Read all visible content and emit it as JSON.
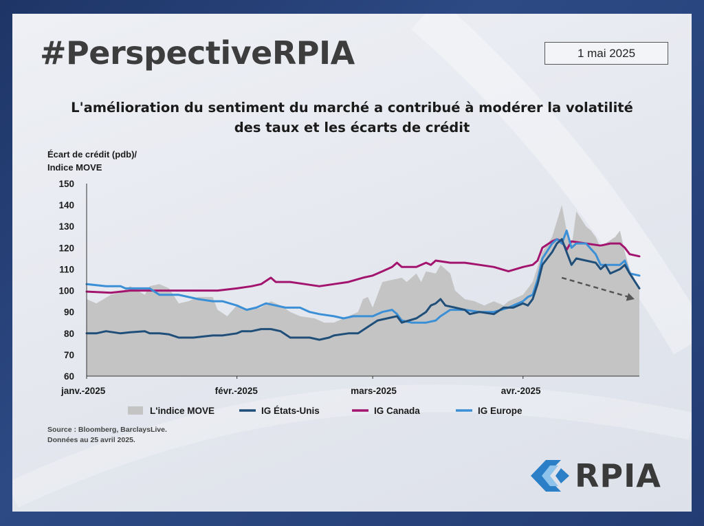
{
  "header": {
    "hashtag": "#PerspectiveRPIA",
    "date": "1 mai 2025"
  },
  "title_line1": "L'amélioration du sentiment du marché a contribué à modérer la volatilité",
  "title_line2": "des taux et les écarts de crédit",
  "ylabel_line1": "Écart de crédit (pdb)/",
  "ylabel_line2": "Indice MOVE",
  "source_line1": "Source : Bloomberg, BarclaysLive.",
  "source_line2": "Données au 25 avril 2025.",
  "logo": {
    "text": "RPIA",
    "icon": "rpia-chevron-logo"
  },
  "colors": {
    "move": "#c4c4c4",
    "us": "#1f4e79",
    "canada": "#a3146e",
    "europe": "#3a8fd6",
    "arrow": "#555555"
  },
  "chart_data": {
    "type": "line",
    "title": "L'amélioration du sentiment du marché a contribué à modérer la volatilité des taux et les écarts de crédit",
    "ylabel": "Écart de crédit (pdb)/ Indice MOVE",
    "ylim": [
      60,
      150
    ],
    "yticks": [
      60,
      70,
      80,
      90,
      100,
      110,
      120,
      130,
      140,
      150
    ],
    "x_start": "2025-01-01",
    "x_end": "2025-04-25",
    "xticks": [
      {
        "label": "janv.-2025",
        "date": "2025-01-01"
      },
      {
        "label": "févr.-2025",
        "date": "2025-02-01"
      },
      {
        "label": "mars-2025",
        "date": "2025-03-01"
      },
      {
        "label": "avr.-2025",
        "date": "2025-04-01"
      }
    ],
    "legend_position": "bottom",
    "grid": false,
    "series": [
      {
        "name": "L'indice MOVE",
        "kind": "area",
        "points": [
          [
            "2025-01-01",
            96
          ],
          [
            "2025-01-03",
            94
          ],
          [
            "2025-01-06",
            98
          ],
          [
            "2025-01-08",
            99
          ],
          [
            "2025-01-10",
            102
          ],
          [
            "2025-01-13",
            98
          ],
          [
            "2025-01-14",
            102
          ],
          [
            "2025-01-16",
            103
          ],
          [
            "2025-01-18",
            101
          ],
          [
            "2025-01-20",
            94
          ],
          [
            "2025-01-22",
            95
          ],
          [
            "2025-01-24",
            97
          ],
          [
            "2025-01-27",
            97
          ],
          [
            "2025-01-28",
            91
          ],
          [
            "2025-01-30",
            88
          ],
          [
            "2025-02-01",
            93
          ],
          [
            "2025-02-04",
            91
          ],
          [
            "2025-02-06",
            92
          ],
          [
            "2025-02-08",
            95
          ],
          [
            "2025-02-10",
            93
          ],
          [
            "2025-02-12",
            90
          ],
          [
            "2025-02-14",
            88
          ],
          [
            "2025-02-17",
            87
          ],
          [
            "2025-02-19",
            85
          ],
          [
            "2025-02-21",
            85
          ],
          [
            "2025-02-24",
            88
          ],
          [
            "2025-02-26",
            90
          ],
          [
            "2025-02-27",
            96
          ],
          [
            "2025-02-28",
            97
          ],
          [
            "2025-03-01",
            92
          ],
          [
            "2025-03-03",
            104
          ],
          [
            "2025-03-05",
            105
          ],
          [
            "2025-03-07",
            106
          ],
          [
            "2025-03-08",
            104
          ],
          [
            "2025-03-10",
            108
          ],
          [
            "2025-03-11",
            104
          ],
          [
            "2025-03-12",
            109
          ],
          [
            "2025-03-14",
            108
          ],
          [
            "2025-03-15",
            112
          ],
          [
            "2025-03-17",
            108
          ],
          [
            "2025-03-18",
            100
          ],
          [
            "2025-03-20",
            96
          ],
          [
            "2025-03-22",
            95
          ],
          [
            "2025-03-24",
            93
          ],
          [
            "2025-03-26",
            95
          ],
          [
            "2025-03-28",
            93
          ],
          [
            "2025-03-29",
            95
          ],
          [
            "2025-04-01",
            98
          ],
          [
            "2025-04-03",
            104
          ],
          [
            "2025-04-05",
            118
          ],
          [
            "2025-04-07",
            125
          ],
          [
            "2025-04-09",
            140
          ],
          [
            "2025-04-10",
            128
          ],
          [
            "2025-04-11",
            120
          ],
          [
            "2025-04-12",
            137
          ],
          [
            "2025-04-14",
            130
          ],
          [
            "2025-04-15",
            128
          ],
          [
            "2025-04-16",
            125
          ],
          [
            "2025-04-17",
            120
          ],
          [
            "2025-04-18",
            122
          ],
          [
            "2025-04-20",
            125
          ],
          [
            "2025-04-21",
            128
          ],
          [
            "2025-04-22",
            118
          ],
          [
            "2025-04-23",
            110
          ],
          [
            "2025-04-25",
            101
          ]
        ]
      },
      {
        "name": "IG États-Unis",
        "kind": "line",
        "points": [
          [
            "2025-01-01",
            80
          ],
          [
            "2025-01-03",
            80
          ],
          [
            "2025-01-05",
            81
          ],
          [
            "2025-01-08",
            80
          ],
          [
            "2025-01-10",
            80.5
          ],
          [
            "2025-01-13",
            81
          ],
          [
            "2025-01-14",
            80
          ],
          [
            "2025-01-16",
            80
          ],
          [
            "2025-01-18",
            79.5
          ],
          [
            "2025-01-20",
            78
          ],
          [
            "2025-01-23",
            78
          ],
          [
            "2025-01-27",
            79
          ],
          [
            "2025-01-29",
            79
          ],
          [
            "2025-02-01",
            80
          ],
          [
            "2025-02-02",
            81
          ],
          [
            "2025-02-04",
            81
          ],
          [
            "2025-02-06",
            82
          ],
          [
            "2025-02-08",
            82
          ],
          [
            "2025-02-10",
            81
          ],
          [
            "2025-02-12",
            78
          ],
          [
            "2025-02-14",
            78
          ],
          [
            "2025-02-16",
            78
          ],
          [
            "2025-02-18",
            77
          ],
          [
            "2025-02-20",
            78
          ],
          [
            "2025-02-21",
            79
          ],
          [
            "2025-02-24",
            80
          ],
          [
            "2025-02-26",
            80
          ],
          [
            "2025-02-28",
            83
          ],
          [
            "2025-03-02",
            86
          ],
          [
            "2025-03-04",
            87
          ],
          [
            "2025-03-06",
            88
          ],
          [
            "2025-03-07",
            85
          ],
          [
            "2025-03-10",
            87
          ],
          [
            "2025-03-12",
            90
          ],
          [
            "2025-03-13",
            93
          ],
          [
            "2025-03-14",
            94
          ],
          [
            "2025-03-15",
            96
          ],
          [
            "2025-03-16",
            93
          ],
          [
            "2025-03-18",
            92
          ],
          [
            "2025-03-20",
            91
          ],
          [
            "2025-03-21",
            89
          ],
          [
            "2025-03-23",
            90
          ],
          [
            "2025-03-26",
            89
          ],
          [
            "2025-03-28",
            92
          ],
          [
            "2025-03-30",
            92
          ],
          [
            "2025-04-01",
            94
          ],
          [
            "2025-04-02",
            93
          ],
          [
            "2025-04-03",
            96
          ],
          [
            "2025-04-04",
            103
          ],
          [
            "2025-04-05",
            112
          ],
          [
            "2025-04-07",
            118
          ],
          [
            "2025-04-08",
            122
          ],
          [
            "2025-04-09",
            124
          ],
          [
            "2025-04-10",
            118
          ],
          [
            "2025-04-11",
            112
          ],
          [
            "2025-04-12",
            115
          ],
          [
            "2025-04-14",
            114
          ],
          [
            "2025-04-16",
            113
          ],
          [
            "2025-04-17",
            110
          ],
          [
            "2025-04-18",
            112
          ],
          [
            "2025-04-19",
            108
          ],
          [
            "2025-04-21",
            110
          ],
          [
            "2025-04-22",
            112
          ],
          [
            "2025-04-23",
            108
          ],
          [
            "2025-04-25",
            101
          ]
        ]
      },
      {
        "name": "IG Canada",
        "kind": "line",
        "points": [
          [
            "2025-01-01",
            99.5
          ],
          [
            "2025-01-06",
            99
          ],
          [
            "2025-01-10",
            100
          ],
          [
            "2025-01-14",
            100
          ],
          [
            "2025-01-20",
            100
          ],
          [
            "2025-01-25",
            100
          ],
          [
            "2025-01-28",
            100
          ],
          [
            "2025-02-01",
            101
          ],
          [
            "2025-02-04",
            102
          ],
          [
            "2025-02-06",
            103
          ],
          [
            "2025-02-08",
            106
          ],
          [
            "2025-02-09",
            104
          ],
          [
            "2025-02-12",
            104
          ],
          [
            "2025-02-15",
            103
          ],
          [
            "2025-02-18",
            102
          ],
          [
            "2025-02-21",
            103
          ],
          [
            "2025-02-24",
            104
          ],
          [
            "2025-02-27",
            106
          ],
          [
            "2025-03-01",
            107
          ],
          [
            "2025-03-03",
            109
          ],
          [
            "2025-03-05",
            111
          ],
          [
            "2025-03-06",
            113
          ],
          [
            "2025-03-07",
            111
          ],
          [
            "2025-03-10",
            111
          ],
          [
            "2025-03-12",
            113
          ],
          [
            "2025-03-13",
            112
          ],
          [
            "2025-03-14",
            114
          ],
          [
            "2025-03-17",
            113
          ],
          [
            "2025-03-20",
            113
          ],
          [
            "2025-03-23",
            112
          ],
          [
            "2025-03-26",
            111
          ],
          [
            "2025-03-29",
            109
          ],
          [
            "2025-04-01",
            111
          ],
          [
            "2025-04-03",
            112
          ],
          [
            "2025-04-04",
            114
          ],
          [
            "2025-04-05",
            120
          ],
          [
            "2025-04-07",
            123
          ],
          [
            "2025-04-08",
            124
          ],
          [
            "2025-04-09",
            123
          ],
          [
            "2025-04-10",
            119
          ],
          [
            "2025-04-11",
            123
          ],
          [
            "2025-04-14",
            122
          ],
          [
            "2025-04-17",
            121
          ],
          [
            "2025-04-19",
            122
          ],
          [
            "2025-04-21",
            122
          ],
          [
            "2025-04-22",
            120
          ],
          [
            "2025-04-23",
            117
          ],
          [
            "2025-04-25",
            116
          ]
        ]
      },
      {
        "name": "IG Europe",
        "kind": "line",
        "points": [
          [
            "2025-01-01",
            103
          ],
          [
            "2025-01-05",
            102
          ],
          [
            "2025-01-08",
            102
          ],
          [
            "2025-01-09",
            101
          ],
          [
            "2025-01-11",
            101
          ],
          [
            "2025-01-14",
            101
          ],
          [
            "2025-01-16",
            98
          ],
          [
            "2025-01-20",
            98
          ],
          [
            "2025-01-22",
            97
          ],
          [
            "2025-01-24",
            96
          ],
          [
            "2025-01-27",
            95
          ],
          [
            "2025-01-29",
            95
          ],
          [
            "2025-02-01",
            93
          ],
          [
            "2025-02-03",
            91
          ],
          [
            "2025-02-05",
            92
          ],
          [
            "2025-02-07",
            94
          ],
          [
            "2025-02-09",
            93
          ],
          [
            "2025-02-11",
            92
          ],
          [
            "2025-02-14",
            92
          ],
          [
            "2025-02-16",
            90
          ],
          [
            "2025-02-18",
            89
          ],
          [
            "2025-02-21",
            88
          ],
          [
            "2025-02-23",
            87
          ],
          [
            "2025-02-25",
            88
          ],
          [
            "2025-02-28",
            88
          ],
          [
            "2025-03-01",
            88
          ],
          [
            "2025-03-03",
            90
          ],
          [
            "2025-03-05",
            91
          ],
          [
            "2025-03-06",
            89
          ],
          [
            "2025-03-07",
            86
          ],
          [
            "2025-03-09",
            85
          ],
          [
            "2025-03-12",
            85
          ],
          [
            "2025-03-14",
            86
          ],
          [
            "2025-03-15",
            88
          ],
          [
            "2025-03-17",
            91
          ],
          [
            "2025-03-20",
            91
          ],
          [
            "2025-03-23",
            90
          ],
          [
            "2025-03-26",
            90
          ],
          [
            "2025-03-29",
            92
          ],
          [
            "2025-04-01",
            95
          ],
          [
            "2025-04-02",
            97
          ],
          [
            "2025-04-03",
            98
          ],
          [
            "2025-04-04",
            105
          ],
          [
            "2025-04-05",
            115
          ],
          [
            "2025-04-07",
            122
          ],
          [
            "2025-04-08",
            124
          ],
          [
            "2025-04-09",
            122
          ],
          [
            "2025-04-10",
            128
          ],
          [
            "2025-04-11",
            120
          ],
          [
            "2025-04-12",
            122
          ],
          [
            "2025-04-14",
            122
          ],
          [
            "2025-04-16",
            117
          ],
          [
            "2025-04-17",
            112
          ],
          [
            "2025-04-19",
            112
          ],
          [
            "2025-04-21",
            112
          ],
          [
            "2025-04-22",
            114
          ],
          [
            "2025-04-23",
            108
          ],
          [
            "2025-04-25",
            107
          ]
        ]
      }
    ],
    "annotation": {
      "kind": "trend-arrow",
      "from": [
        "2025-04-09",
        106
      ],
      "to": [
        "2025-04-24",
        96
      ]
    }
  }
}
